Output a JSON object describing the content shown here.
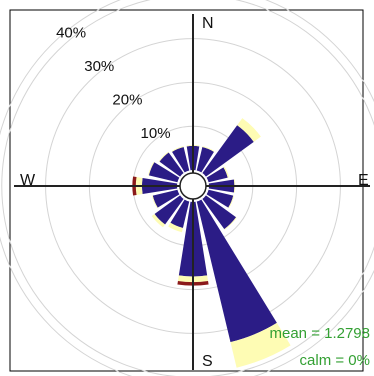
{
  "chart_data": {
    "type": "windrose",
    "directions": [
      "N",
      "NNE",
      "NE",
      "ENE",
      "E",
      "ESE",
      "SE",
      "SSE",
      "S",
      "SSW",
      "SW",
      "WSW",
      "W",
      "WNW",
      "NW",
      "NNW"
    ],
    "compass_labels": {
      "N": "N",
      "E": "E",
      "S": "S",
      "W": "W"
    },
    "ring_labels": [
      "10%",
      "20%",
      "30%",
      "40%"
    ],
    "ring_values": [
      10,
      20,
      30,
      40
    ],
    "radial_max": 42,
    "bin_colors": [
      "#2b1c86",
      "#fefcb4",
      "#8b1a1a"
    ],
    "series": [
      {
        "values": [
          5.5,
          5.5,
          13.5,
          4.5,
          5.8,
          5.8,
          8.5,
          33,
          17,
          6.2,
          7.2,
          5.8,
          8,
          6.7,
          5.8,
          5.5
        ]
      },
      {
        "values": [
          0.2,
          0.2,
          2,
          0.3,
          0.2,
          0.2,
          0.2,
          6,
          1.3,
          1,
          0.8,
          0.2,
          1.4,
          0.2,
          0.2,
          0.2
        ]
      },
      {
        "values": [
          0,
          0,
          0,
          0,
          0,
          0,
          0,
          0,
          0.8,
          0,
          0,
          0,
          0.8,
          0,
          0,
          0
        ]
      }
    ],
    "mean_label": "mean = 1.2798",
    "calm_label": "calm = 0%"
  }
}
